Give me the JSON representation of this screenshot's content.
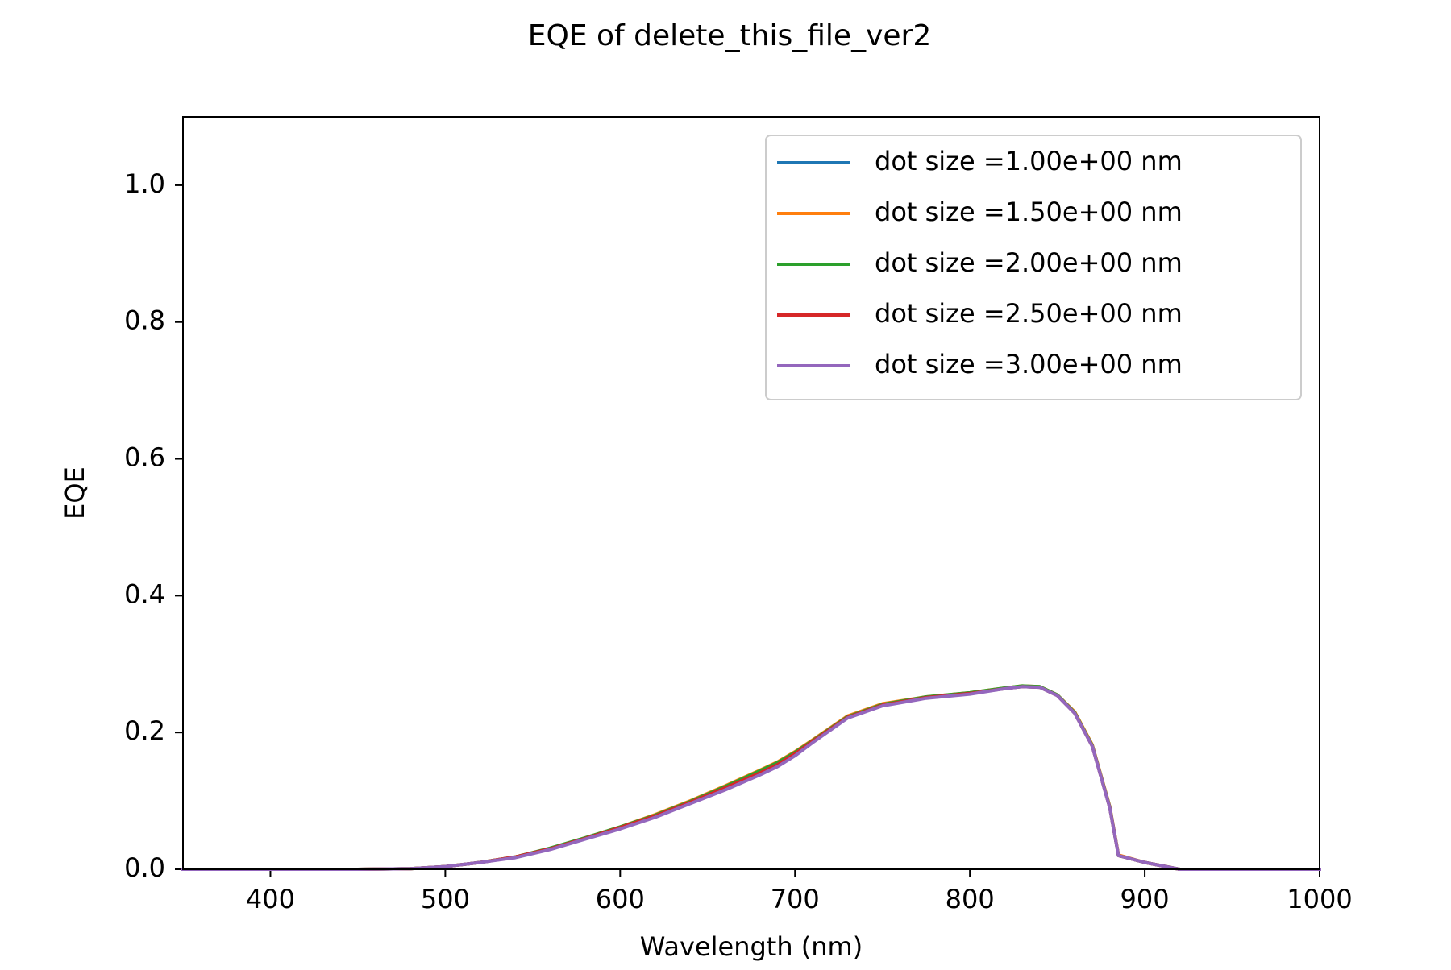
{
  "chart_data": {
    "type": "line",
    "title": "EQE of  delete_this_file_ver2",
    "xlabel": "Wavelength (nm)",
    "ylabel": "EQE",
    "xlim": [
      350,
      1000
    ],
    "ylim": [
      0,
      1.1
    ],
    "xticks": [
      400,
      500,
      600,
      700,
      800,
      900,
      1000
    ],
    "xtick_labels": [
      "400",
      "500",
      "600",
      "700",
      "800",
      "900",
      "1000"
    ],
    "yticks": [
      0,
      0.2,
      0.4,
      0.6,
      0.8,
      1.0
    ],
    "ytick_labels": [
      "0.0",
      "0.2",
      "0.4",
      "0.6",
      "0.8",
      "1.0"
    ],
    "grid": false,
    "legend_position": "top-right",
    "x": [
      350,
      400,
      450,
      480,
      500,
      520,
      540,
      560,
      580,
      600,
      620,
      640,
      660,
      680,
      690,
      700,
      710,
      730,
      750,
      775,
      800,
      820,
      830,
      840,
      850,
      860,
      870,
      880,
      885,
      900,
      920,
      950,
      1000
    ],
    "series": [
      {
        "name": "dot size =1.00e+00 nm",
        "color": "#1f77b4",
        "values": [
          0,
          0,
          0,
          0.001,
          0.004,
          0.01,
          0.018,
          0.03,
          0.045,
          0.06,
          0.077,
          0.097,
          0.118,
          0.14,
          0.152,
          0.168,
          0.186,
          0.222,
          0.24,
          0.251,
          0.257,
          0.264,
          0.267,
          0.266,
          0.254,
          0.228,
          0.18,
          0.09,
          0.02,
          0.01,
          0,
          0,
          0
        ]
      },
      {
        "name": "dot size =1.50e+00 nm",
        "color": "#ff7f0e",
        "values": [
          0,
          0,
          0,
          0.001,
          0.004,
          0.01,
          0.018,
          0.03,
          0.046,
          0.062,
          0.08,
          0.1,
          0.122,
          0.145,
          0.157,
          0.172,
          0.189,
          0.224,
          0.242,
          0.252,
          0.258,
          0.265,
          0.268,
          0.267,
          0.255,
          0.23,
          0.182,
          0.092,
          0.021,
          0.01,
          0,
          0,
          0
        ]
      },
      {
        "name": "dot size =2.00e+00 nm",
        "color": "#2ca02c",
        "values": [
          0,
          0,
          0,
          0.001,
          0.004,
          0.01,
          0.018,
          0.031,
          0.046,
          0.062,
          0.079,
          0.099,
          0.121,
          0.144,
          0.156,
          0.171,
          0.188,
          0.223,
          0.241,
          0.252,
          0.258,
          0.265,
          0.268,
          0.267,
          0.255,
          0.229,
          0.181,
          0.091,
          0.02,
          0.01,
          0,
          0,
          0
        ]
      },
      {
        "name": "dot size =2.50e+00 nm",
        "color": "#d62728",
        "values": [
          0,
          0,
          0,
          0.001,
          0.004,
          0.01,
          0.018,
          0.03,
          0.045,
          0.061,
          0.078,
          0.098,
          0.119,
          0.141,
          0.153,
          0.169,
          0.187,
          0.222,
          0.24,
          0.251,
          0.257,
          0.264,
          0.267,
          0.266,
          0.254,
          0.228,
          0.18,
          0.09,
          0.02,
          0.01,
          0,
          0,
          0
        ]
      },
      {
        "name": "dot size =3.00e+00 nm",
        "color": "#9467bd",
        "values": [
          0,
          0,
          0,
          0.001,
          0.004,
          0.01,
          0.017,
          0.029,
          0.044,
          0.059,
          0.076,
          0.096,
          0.116,
          0.138,
          0.15,
          0.166,
          0.185,
          0.221,
          0.239,
          0.25,
          0.256,
          0.264,
          0.267,
          0.266,
          0.254,
          0.228,
          0.18,
          0.09,
          0.02,
          0.01,
          0,
          0,
          0
        ]
      }
    ]
  }
}
